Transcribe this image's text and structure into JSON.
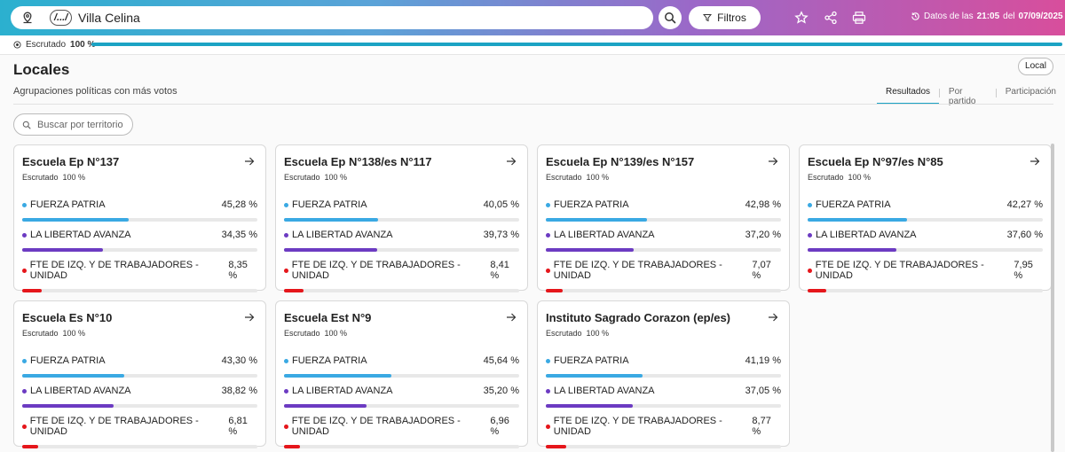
{
  "header": {
    "crumb_label": "/.../",
    "search_value": "Villa Celina",
    "filters_label": "Filtros",
    "datos_prefix": "Datos de las",
    "datos_time": "21:05",
    "datos_mid": "del",
    "datos_date": "07/09/2025"
  },
  "progress": {
    "label": "Escrutado",
    "value_label": "100 %",
    "fraction": 1.0
  },
  "main": {
    "title": "Locales",
    "subtitle": "Agrupaciones políticas con más votos",
    "local_button": "Local",
    "tabs": [
      "Resultados",
      "Por partido",
      "Participación"
    ],
    "search_placeholder": "Buscar por territorio"
  },
  "colors": {
    "fuerza_patria": "#3aa9e3",
    "libertad_avanza": "#6c3bc2",
    "fte_izq": "#e5161b"
  },
  "cards": [
    {
      "title": "Escuela Ep N°137",
      "escrutado_label": "Escrutado",
      "escrutado": "100 %",
      "parties": [
        {
          "name": "FUERZA PATRIA",
          "pct": "45,28 %",
          "value": 45.28
        },
        {
          "name": "LA LIBERTAD AVANZA",
          "pct": "34,35 %",
          "value": 34.35
        },
        {
          "name": "FTE DE IZQ. Y DE TRABAJADORES - UNIDAD",
          "pct": "8,35 %",
          "value": 8.35
        }
      ]
    },
    {
      "title": "Escuela Ep N°138/es N°117",
      "escrutado_label": "Escrutado",
      "escrutado": "100 %",
      "parties": [
        {
          "name": "FUERZA PATRIA",
          "pct": "40,05 %",
          "value": 40.05
        },
        {
          "name": "LA LIBERTAD AVANZA",
          "pct": "39,73 %",
          "value": 39.73
        },
        {
          "name": "FTE DE IZQ. Y DE TRABAJADORES - UNIDAD",
          "pct": "8,41 %",
          "value": 8.41
        }
      ]
    },
    {
      "title": "Escuela Ep N°139/es N°157",
      "escrutado_label": "Escrutado",
      "escrutado": "100 %",
      "parties": [
        {
          "name": "FUERZA PATRIA",
          "pct": "42,98 %",
          "value": 42.98
        },
        {
          "name": "LA LIBERTAD AVANZA",
          "pct": "37,20 %",
          "value": 37.2
        },
        {
          "name": "FTE DE IZQ. Y DE TRABAJADORES - UNIDAD",
          "pct": "7,07 %",
          "value": 7.07
        }
      ]
    },
    {
      "title": "Escuela Ep N°97/es N°85",
      "escrutado_label": "Escrutado",
      "escrutado": "100 %",
      "parties": [
        {
          "name": "FUERZA PATRIA",
          "pct": "42,27 %",
          "value": 42.27
        },
        {
          "name": "LA LIBERTAD AVANZA",
          "pct": "37,60 %",
          "value": 37.6
        },
        {
          "name": "FTE DE IZQ. Y DE TRABAJADORES - UNIDAD",
          "pct": "7,95 %",
          "value": 7.95
        }
      ]
    },
    {
      "title": "Escuela Es N°10",
      "escrutado_label": "Escrutado",
      "escrutado": "100 %",
      "parties": [
        {
          "name": "FUERZA PATRIA",
          "pct": "43,30 %",
          "value": 43.3
        },
        {
          "name": "LA LIBERTAD AVANZA",
          "pct": "38,82 %",
          "value": 38.82
        },
        {
          "name": "FTE DE IZQ. Y DE TRABAJADORES - UNIDAD",
          "pct": "6,81 %",
          "value": 6.81
        }
      ]
    },
    {
      "title": "Escuela Est N°9",
      "escrutado_label": "Escrutado",
      "escrutado": "100 %",
      "parties": [
        {
          "name": "FUERZA PATRIA",
          "pct": "45,64 %",
          "value": 45.64
        },
        {
          "name": "LA LIBERTAD AVANZA",
          "pct": "35,20 %",
          "value": 35.2
        },
        {
          "name": "FTE DE IZQ. Y DE TRABAJADORES - UNIDAD",
          "pct": "6,96 %",
          "value": 6.96
        }
      ]
    },
    {
      "title": "Instituto Sagrado Corazon (ep/es)",
      "escrutado_label": "Escrutado",
      "escrutado": "100 %",
      "parties": [
        {
          "name": "FUERZA PATRIA",
          "pct": "41,19 %",
          "value": 41.19
        },
        {
          "name": "LA LIBERTAD AVANZA",
          "pct": "37,05 %",
          "value": 37.05
        },
        {
          "name": "FTE DE IZQ. Y DE TRABAJADORES - UNIDAD",
          "pct": "8,77 %",
          "value": 8.77
        }
      ]
    }
  ]
}
